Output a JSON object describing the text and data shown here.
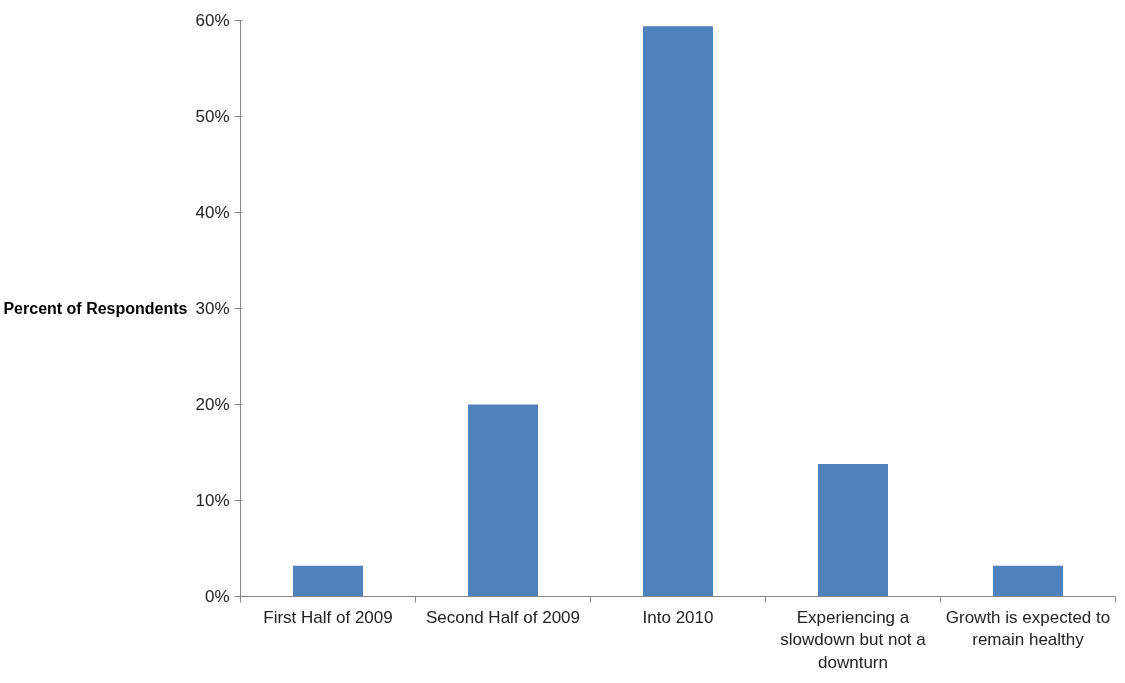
{
  "chart_data": {
    "type": "bar",
    "ylabel": "Percent of Respondents",
    "categories": [
      "First Half of 2009",
      "Second Half of 2009",
      "Into 2010",
      "Experiencing a slowdown but not a downturn",
      "Growth is expected to remain healthy"
    ],
    "values": [
      3.2,
      20,
      59.4,
      13.8,
      3.2
    ],
    "color": "#4f81bd",
    "ylim": [
      0,
      60
    ],
    "yticks": [
      {
        "value": 0,
        "label": "0%"
      },
      {
        "value": 10,
        "label": "10%"
      },
      {
        "value": 20,
        "label": "20%"
      },
      {
        "value": 30,
        "label": "30%"
      },
      {
        "value": 40,
        "label": "40%"
      },
      {
        "value": 50,
        "label": "50%"
      },
      {
        "value": 60,
        "label": "60%"
      }
    ],
    "grid": false
  }
}
